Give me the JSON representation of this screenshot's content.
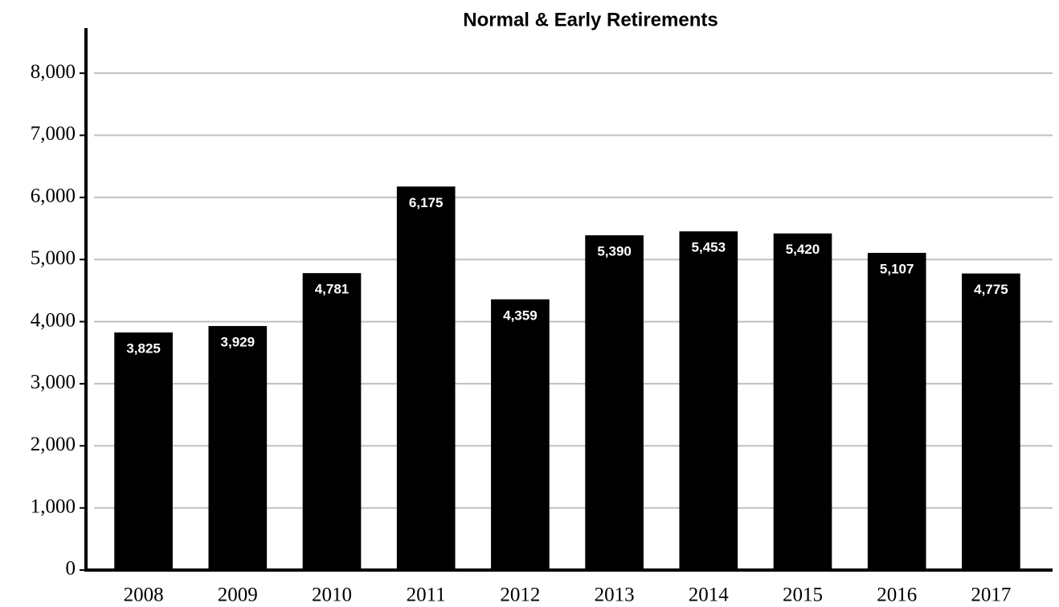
{
  "chart_data": {
    "type": "bar",
    "title": "Normal & Early Retirements",
    "categories": [
      "2008",
      "2009",
      "2010",
      "2011",
      "2012",
      "2013",
      "2014",
      "2015",
      "2016",
      "2017"
    ],
    "values": [
      3825,
      3929,
      4781,
      6175,
      4359,
      5390,
      5453,
      5420,
      5107,
      4775
    ],
    "value_labels": [
      "3,825",
      "3,929",
      "4,781",
      "6,175",
      "4,359",
      "5,390",
      "5,453",
      "5,420",
      "5,107",
      "4,775"
    ],
    "color": "#000000",
    "ylim": [
      0,
      8700
    ],
    "yticks": [
      0,
      {
        "value": 1000,
        "label": "1,000"
      },
      {
        "value": 2000,
        "label": "2,000"
      },
      {
        "value": 3000,
        "label": "3,000"
      },
      {
        "value": 4000,
        "label": "4,000"
      },
      {
        "value": 5000,
        "label": "5,000"
      },
      {
        "value": 6000,
        "label": "6,000"
      },
      {
        "value": 7000,
        "label": "7,000"
      },
      {
        "value": 8000,
        "label": "8,000"
      }
    ],
    "grid": true
  }
}
